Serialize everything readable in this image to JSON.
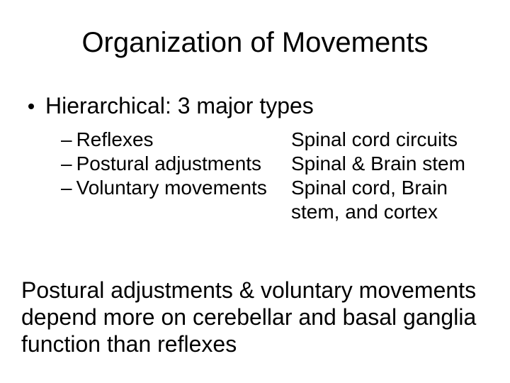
{
  "title": "Organization of Movements",
  "bullet": "Hierarchical: 3 major types",
  "sub": {
    "left": [
      "Reflexes",
      "Postural adjustments",
      "Voluntary movements"
    ],
    "right": [
      "Spinal cord circuits",
      "Spinal & Brain stem",
      "Spinal cord, Brain stem, and cortex"
    ]
  },
  "footer": "Postural adjustments & voluntary movements depend more on cerebellar and basal ganglia function than reflexes",
  "style": {
    "background_color": "#ffffff",
    "text_color": "#000000",
    "font_family": "Arial",
    "title_fontsize": 40,
    "body_fontsize": 32,
    "sub_fontsize": 28,
    "footer_fontsize": 32,
    "slide_width": 720,
    "slide_height": 540
  }
}
